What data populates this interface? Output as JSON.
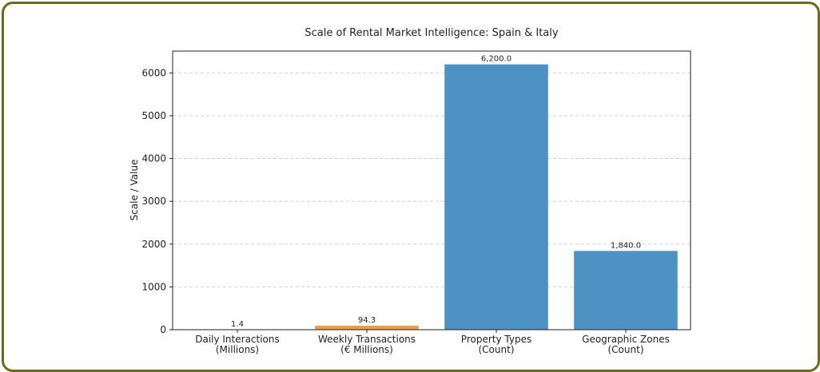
{
  "chart_data": {
    "type": "bar",
    "title": "Scale of Rental Market Intelligence: Spain & Italy",
    "xlabel": "",
    "ylabel": "Scale / Value",
    "categories": [
      [
        "Daily Interactions",
        "(Millions)"
      ],
      [
        "Weekly Transactions",
        "(€ Millions)"
      ],
      [
        "Property Types",
        "(Count)"
      ],
      [
        "Geographic Zones",
        "(Count)"
      ]
    ],
    "values": [
      1.4,
      94.3,
      6200.0,
      1840.0
    ],
    "value_labels": [
      "1.4",
      "94.3",
      "6,200.0",
      "1,840.0"
    ],
    "bar_colors": [
      "#4c93c3",
      "#f39a45",
      "#4c93c3",
      "#4c93c3"
    ],
    "ylim": [
      0,
      6510
    ],
    "yticks": [
      0,
      1000,
      2000,
      3000,
      4000,
      5000,
      6000
    ],
    "grid": "y-dashed",
    "legend": "none"
  }
}
